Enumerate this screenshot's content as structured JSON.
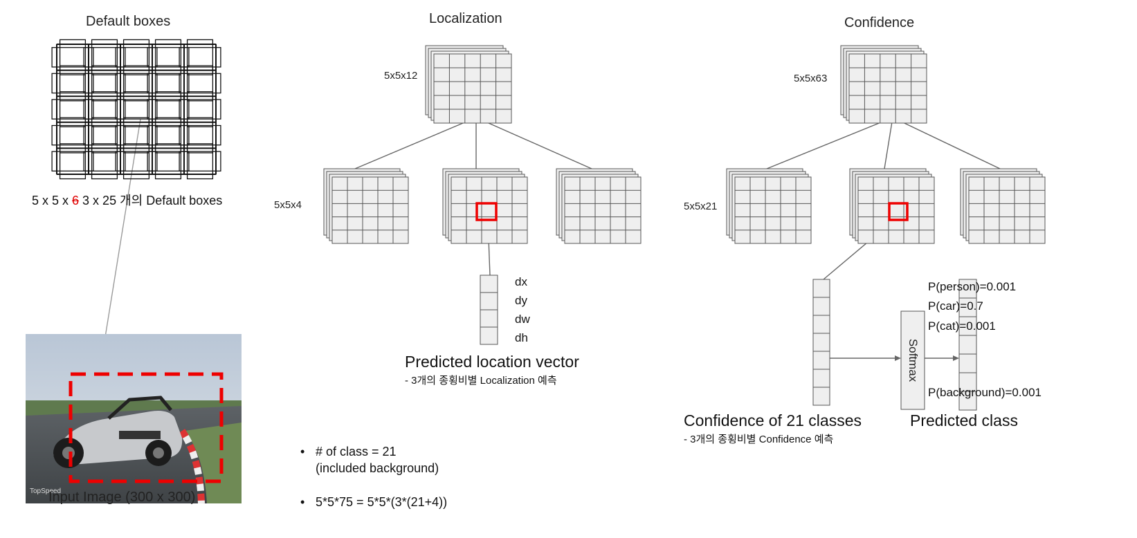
{
  "default_boxes": {
    "title": "Default boxes",
    "count_prefix": "5 x 5 x ",
    "count_struck": "6",
    "count_suffix": " 3 x 25 개의 Default boxes"
  },
  "input_image": {
    "caption": "Input Image (300 x 300)"
  },
  "localization": {
    "title": "Localization",
    "top_dim": "5x5x12",
    "branch_dim": "5x5x4",
    "vector_labels": [
      "dx",
      "dy",
      "dw",
      "dh"
    ],
    "output_title": "Predicted location vector",
    "output_note": "- 3개의 종횡비별 Localization 예측"
  },
  "confidence": {
    "title": "Confidence",
    "top_dim": "5x5x63",
    "branch_dim": "5x5x21",
    "softmax_label": "Softmax",
    "probabilities": [
      "P(person)=0.001",
      "P(car)=0.7",
      "P(cat)=0.001",
      "P(background)=0.001"
    ],
    "vector_title": "Confidence of 21 classes",
    "vector_note": "- 3개의 종횡비별 Confidence 예측",
    "predicted_title": "Predicted class"
  },
  "notes": {
    "bullet": "•",
    "class_count": "# of class = 21",
    "class_count_detail": "(included background)",
    "formula": "5*5*75 = 5*5*(3*(21+4))"
  },
  "colors": {
    "grid_fill": "#efefef",
    "grid_stroke": "#555555",
    "highlight": "#ee0000",
    "connector": "#666666"
  }
}
